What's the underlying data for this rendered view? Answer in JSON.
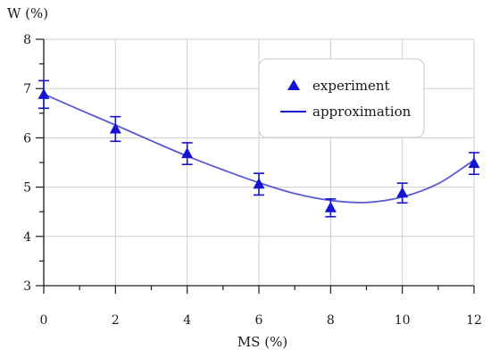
{
  "chart_data": {
    "type": "scatter",
    "xlabel": "MS (%)",
    "ylabel": "W (%)",
    "xlim": [
      0,
      12
    ],
    "ylim": [
      3,
      8
    ],
    "x_ticks": [
      0,
      2,
      4,
      6,
      8,
      10,
      12
    ],
    "y_ticks": [
      3,
      4,
      5,
      6,
      7,
      8
    ],
    "grid": true,
    "legend_position": "top-right",
    "series": [
      {
        "name": "experiment",
        "kind": "points-with-error-bars",
        "marker": "triangle",
        "color": "#1414d2",
        "x": [
          0,
          2,
          4,
          6,
          8,
          10,
          12
        ],
        "y": [
          6.88,
          6.18,
          5.68,
          5.06,
          4.58,
          4.88,
          5.48
        ],
        "error": [
          0.28,
          0.25,
          0.22,
          0.22,
          0.18,
          0.2,
          0.22
        ]
      },
      {
        "name": "approximation",
        "kind": "curve",
        "color": "#5a5ad2",
        "x": [
          0,
          1,
          2,
          3,
          4,
          5,
          6,
          7,
          8,
          9,
          10,
          11,
          12
        ],
        "y": [
          6.89,
          6.57,
          6.26,
          5.94,
          5.63,
          5.35,
          5.09,
          4.87,
          4.73,
          4.69,
          4.8,
          5.07,
          5.55
        ]
      }
    ]
  }
}
